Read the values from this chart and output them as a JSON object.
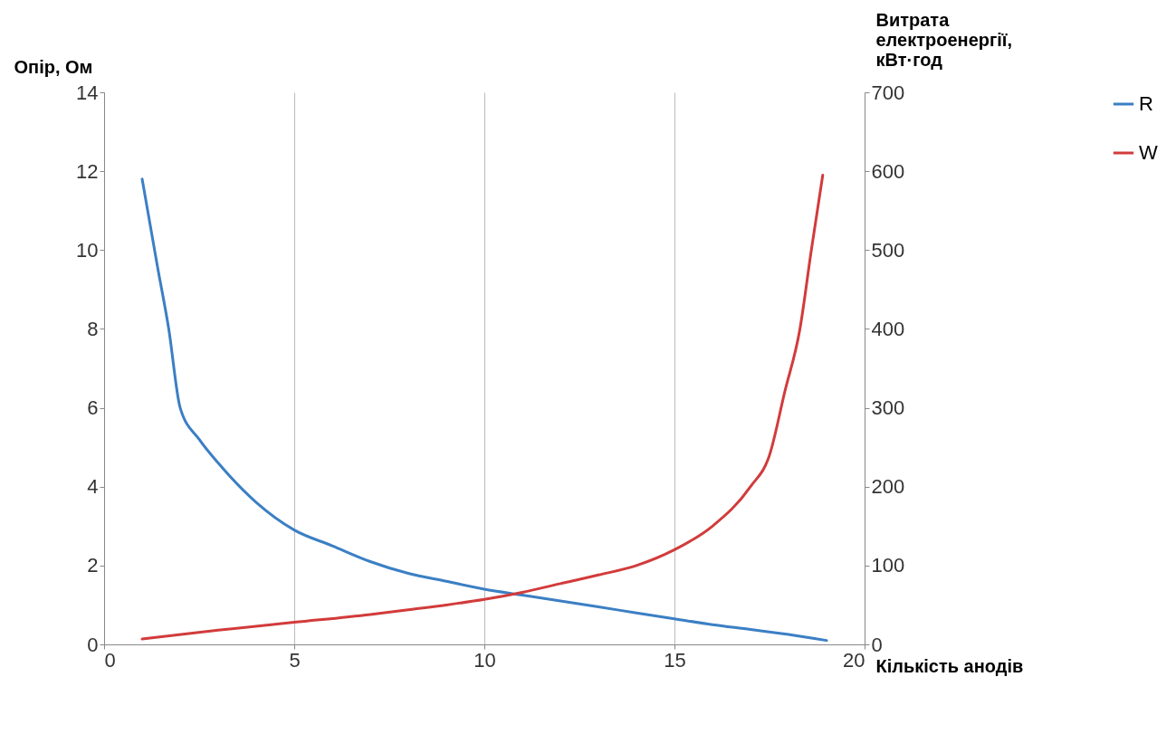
{
  "chart_data": {
    "type": "line",
    "xlabel": "Кількість анодів",
    "ylabel": "Опір, Ом",
    "y2label": "Витрата електроенергії, кВт·год",
    "xlim": [
      0,
      20
    ],
    "xticks": [
      0,
      5,
      10,
      15,
      20
    ],
    "ylim": [
      0,
      14
    ],
    "yticks": [
      0,
      2,
      4,
      6,
      8,
      10,
      12,
      14
    ],
    "y2lim": [
      0,
      700
    ],
    "y2ticks": [
      0,
      100,
      200,
      300,
      400,
      500,
      600,
      700
    ],
    "grid": "x",
    "legend": "right",
    "line_style": "solid",
    "marker": "none",
    "series": [
      {
        "name": "R",
        "color": "#3b7fc4",
        "x": [
          1,
          1.4,
          1.7,
          2,
          2.5,
          3,
          4,
          5,
          6,
          7,
          8,
          9,
          10,
          11,
          12,
          13,
          14,
          15,
          16,
          17,
          18,
          19
        ],
        "values": [
          11.8,
          9.6,
          8,
          6,
          5.2,
          4.6,
          3.6,
          2.9,
          2.5,
          2.1,
          1.8,
          1.6,
          1.4,
          1.25,
          1.1,
          0.95,
          0.8,
          0.65,
          0.5,
          0.38,
          0.25,
          0.1
        ]
      },
      {
        "name": "W",
        "color": "#d23b3b",
        "axis": "y2",
        "x": [
          1,
          3,
          5,
          7,
          8,
          9,
          10,
          11,
          12,
          13,
          14,
          15,
          16,
          17,
          17.5,
          17.9,
          18.3,
          18.6,
          18.9
        ],
        "values": [
          7,
          18,
          28,
          38,
          44,
          50,
          57,
          66,
          77,
          88,
          100,
          120,
          150,
          200,
          240,
          320,
          400,
          500,
          595
        ]
      }
    ]
  }
}
